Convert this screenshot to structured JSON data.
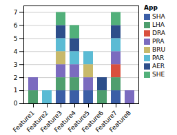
{
  "chart_data": {
    "type": "bar",
    "stacked": true,
    "categories": [
      "Feature1",
      "Feature2",
      "Feature3",
      "Feature4",
      "Feature5",
      "Feature6",
      "Feature7",
      "Feature8"
    ],
    "series": [
      {
        "name": "SHA",
        "color": "#3b5ea6",
        "values": [
          0,
          0,
          1,
          1,
          1,
          0,
          1,
          0
        ]
      },
      {
        "name": "LHA",
        "color": "#4e9e6e",
        "values": [
          1,
          0,
          1,
          1,
          0,
          1,
          1,
          0
        ]
      },
      {
        "name": "DRA",
        "color": "#d94f3d",
        "values": [
          0,
          0,
          0,
          0,
          0,
          0,
          1,
          0
        ]
      },
      {
        "name": "PRA",
        "color": "#7b6bbf",
        "values": [
          1,
          0,
          1,
          1,
          1,
          0,
          1,
          1
        ]
      },
      {
        "name": "BRU",
        "color": "#c8b96a",
        "values": [
          0,
          0,
          1,
          0,
          1,
          0,
          0,
          0
        ]
      },
      {
        "name": "PAR",
        "color": "#5bbbd4",
        "values": [
          0,
          1,
          1,
          1,
          1,
          0,
          1,
          0
        ]
      },
      {
        "name": "AER",
        "color": "#2d4e8a",
        "values": [
          0,
          0,
          1,
          1,
          0,
          1,
          1,
          0
        ]
      },
      {
        "name": "SHE",
        "color": "#52b07a",
        "values": [
          0,
          0,
          1,
          1,
          0,
          0,
          1,
          0
        ]
      }
    ],
    "ylim": [
      0,
      7.5
    ],
    "yticks": [
      0,
      1,
      2,
      3,
      4,
      5,
      6,
      7
    ],
    "grid": true,
    "legend": "upper right",
    "legend_title": "App"
  }
}
